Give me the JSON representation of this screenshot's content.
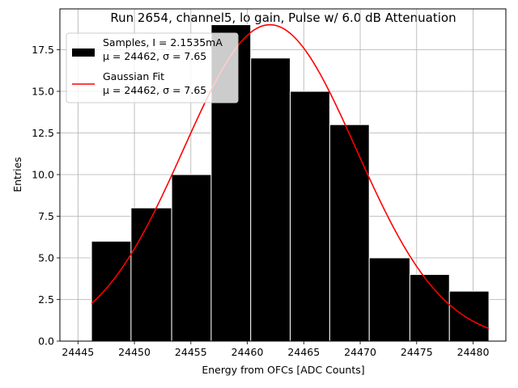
{
  "chart_data": {
    "type": "bar",
    "title": "Run 2654, channel5, lo gain, Pulse w/ 6.0 dB Attenuation",
    "xlabel": "Energy from OFCs [ADC Counts]",
    "ylabel": "Entries",
    "xlim": [
      24443.4,
      24482.9
    ],
    "ylim": [
      0,
      19.95
    ],
    "grid": true,
    "legend_position": "top-left",
    "xticks": [
      24445,
      24450,
      24455,
      24460,
      24465,
      24470,
      24475,
      24480
    ],
    "yticks": [
      0.0,
      2.5,
      5.0,
      7.5,
      10.0,
      12.5,
      15.0,
      17.5
    ],
    "histogram": {
      "name": "Samples, I = 2.1535mA",
      "stats_label": "μ = 24462, σ = 7.65",
      "bin_edges": [
        24446.2,
        24449.7,
        24453.3,
        24456.8,
        24460.3,
        24463.8,
        24467.3,
        24470.8,
        24474.4,
        24477.9,
        24481.4
      ],
      "counts": [
        6,
        8,
        10,
        19,
        17,
        15,
        13,
        5,
        4,
        3
      ],
      "color": "#000000",
      "edgecolor": "#ffffff"
    },
    "fit": {
      "name": "Gaussian Fit",
      "stats_label": "μ = 24462, σ = 7.65",
      "mean": 24462.0,
      "sigma": 7.65,
      "amplitude": 19.0,
      "x_range": [
        24446.2,
        24481.4
      ],
      "color": "#ff0000"
    }
  }
}
